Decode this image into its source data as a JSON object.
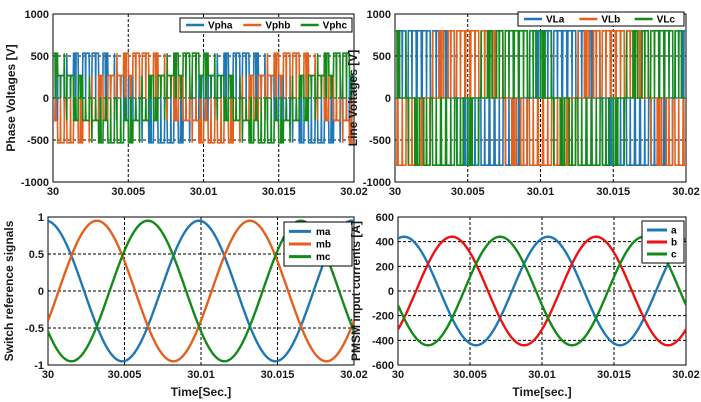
{
  "colors": {
    "blue": "#1f77b4",
    "orange": "#e3601d",
    "green": "#138a1a",
    "red": "#ee1111"
  },
  "chart_data": [
    {
      "type": "line",
      "ylabel": "Phase Voltages [V]",
      "xlabel": "",
      "xlim": [
        30,
        30.02
      ],
      "ylim": [
        -1000,
        1000
      ],
      "xticks": [
        "30",
        "30.005",
        "30.01",
        "30.015",
        "30.02"
      ],
      "yticks": [
        "1000",
        "500",
        "0",
        "-500",
        "-1000"
      ],
      "grid": true,
      "legend_position": "top-right",
      "legend_orientation": "horizontal",
      "waveform": "three-phase PWM phase voltage, levels ±530 V and ±270 V, fundamental 100 Hz",
      "series": [
        {
          "name": "Vpha",
          "color": "#1f77b4",
          "phase_deg": 0,
          "levels": [
            530,
            270,
            0,
            -270,
            -530
          ]
        },
        {
          "name": "Vphb",
          "color": "#e3601d",
          "phase_deg": -120,
          "levels": [
            530,
            270,
            0,
            -270,
            -530
          ]
        },
        {
          "name": "Vphc",
          "color": "#138a1a",
          "phase_deg": 120,
          "levels": [
            530,
            270,
            0,
            -270,
            -530
          ]
        }
      ]
    },
    {
      "type": "line",
      "ylabel": "Line Voltages [V]",
      "xlabel": "",
      "xlim": [
        30,
        30.02
      ],
      "ylim": [
        -1000,
        1000
      ],
      "xticks": [
        "30",
        "30.005",
        "30.01",
        "30.015",
        "30.02"
      ],
      "yticks": [
        "1000",
        "500",
        "0",
        "-500",
        "-1000"
      ],
      "grid": true,
      "legend_position": "top-right",
      "legend_orientation": "horizontal",
      "waveform": "three-phase PWM line voltage, levels ±800 V and 0, fundamental 100 Hz",
      "series": [
        {
          "name": "VLa",
          "color": "#1f77b4",
          "phase_deg": 30,
          "levels": [
            800,
            0,
            -800
          ]
        },
        {
          "name": "VLb",
          "color": "#e3601d",
          "phase_deg": -90,
          "levels": [
            800,
            0,
            -800
          ]
        },
        {
          "name": "VLc",
          "color": "#138a1a",
          "phase_deg": 150,
          "levels": [
            800,
            0,
            -800
          ]
        }
      ]
    },
    {
      "type": "line",
      "ylabel": "Switch reference signals",
      "xlabel": "Time[Sec.]",
      "xlim": [
        30,
        30.02
      ],
      "ylim": [
        -1,
        1
      ],
      "xticks": [
        "30",
        "30.005",
        "30.01",
        "30.015",
        "30.02"
      ],
      "yticks": [
        "1",
        "0.5",
        "0",
        "-0.5",
        "-1"
      ],
      "grid": true,
      "legend_position": "top-right",
      "legend_orientation": "vertical",
      "series": [
        {
          "name": "ma",
          "color": "#1f77b4",
          "amplitude": 0.95,
          "frequency_hz": 100,
          "phase_deg": 95
        },
        {
          "name": "mb",
          "color": "#e3601d",
          "amplitude": 0.95,
          "frequency_hz": 100,
          "phase_deg": -25
        },
        {
          "name": "mc",
          "color": "#138a1a",
          "amplitude": 0.95,
          "frequency_hz": 100,
          "phase_deg": 215
        }
      ]
    },
    {
      "type": "line",
      "ylabel": "PMSM  input currents [A]",
      "xlabel": "Time[sec.]",
      "xlim": [
        30,
        30.02
      ],
      "ylim": [
        -600,
        600
      ],
      "xticks": [
        "30",
        "30.005",
        "30.01",
        "30.015",
        "30.02"
      ],
      "yticks": [
        "600",
        "400",
        "200",
        "0",
        "-200",
        "-400",
        "-600"
      ],
      "grid": true,
      "legend_position": "top-right",
      "legend_orientation": "vertical",
      "series": [
        {
          "name": "a",
          "color": "#1f77b4",
          "amplitude": 440,
          "frequency_hz": 100,
          "phase_deg": 75
        },
        {
          "name": "b",
          "color": "#ee1111",
          "amplitude": 440,
          "frequency_hz": 100,
          "phase_deg": -45
        },
        {
          "name": "c",
          "color": "#138a1a",
          "amplitude": 440,
          "frequency_hz": 100,
          "phase_deg": 195
        }
      ]
    }
  ]
}
